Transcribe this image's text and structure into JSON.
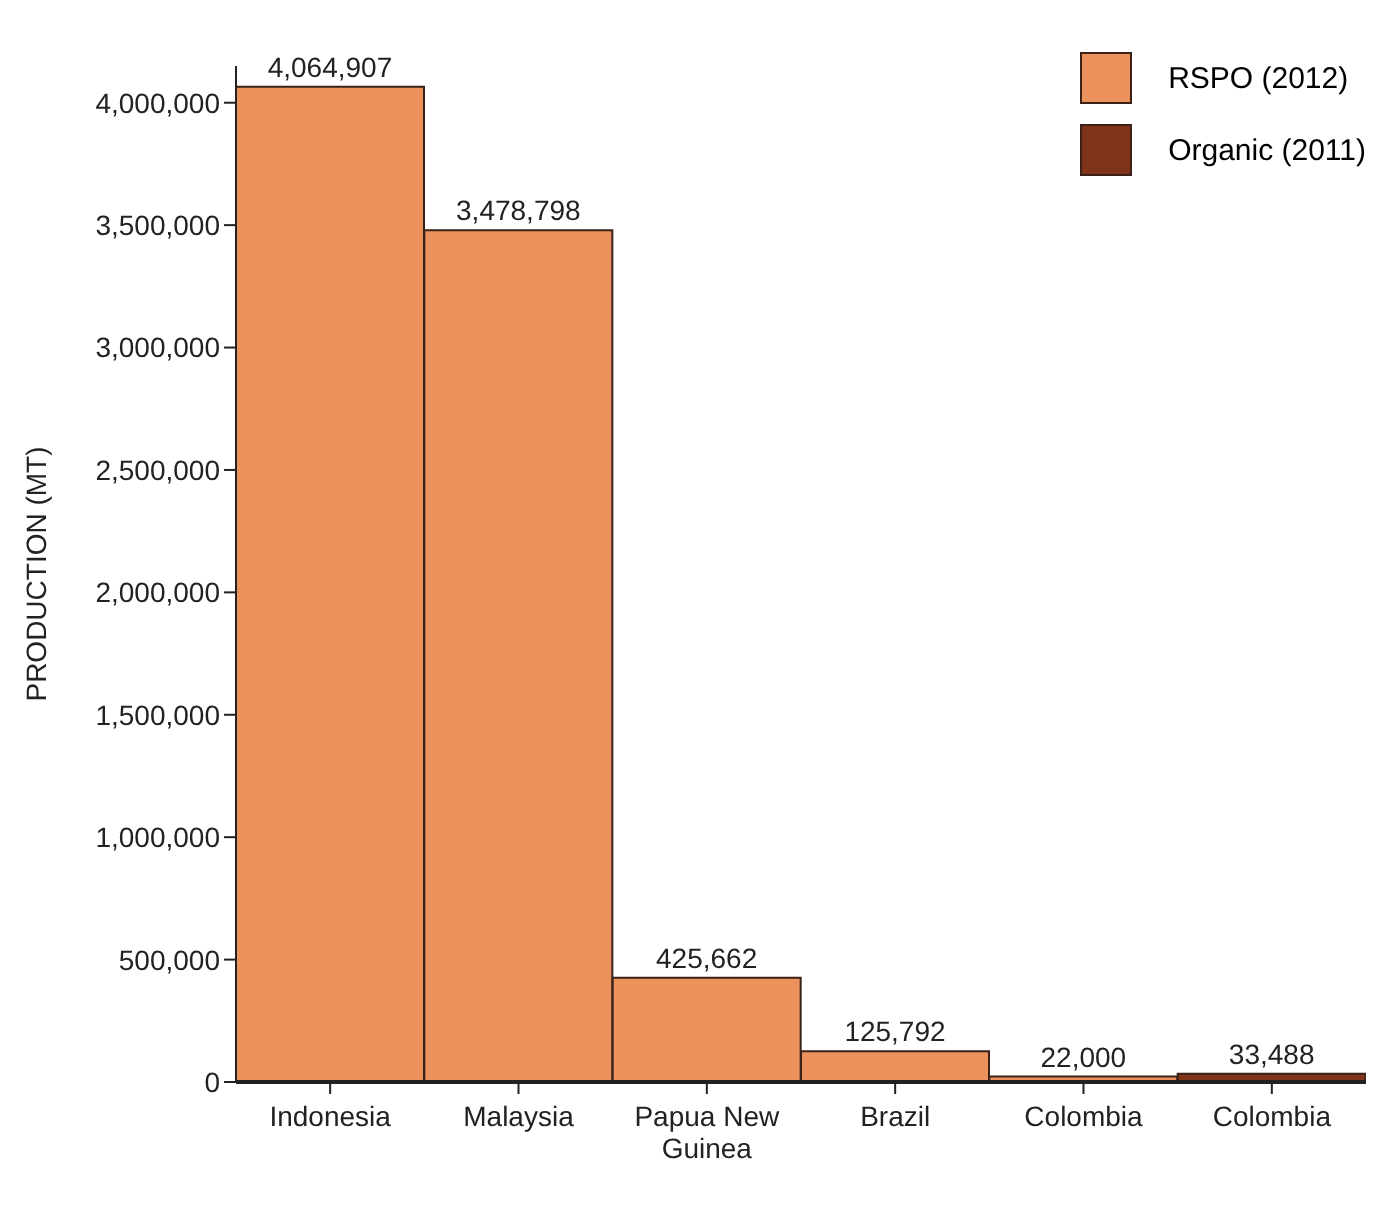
{
  "chart_data": {
    "type": "bar",
    "ylabel": "PRODUCTION (MT)",
    "categories": [
      "Indonesia",
      "Malaysia",
      "Papua New Guinea",
      "Brazil",
      "Colombia",
      "Colombia"
    ],
    "series": [
      {
        "name": "RSPO (2012)",
        "color": "#ec935d",
        "values": [
          4064907,
          3478798,
          425662,
          125792,
          22000,
          null
        ],
        "value_labels": [
          "4,064,907",
          "3,478,798",
          "425,662",
          "125,792",
          "22,000",
          null
        ]
      },
      {
        "name": "Organic (2011)",
        "color": "#80341a",
        "values": [
          null,
          null,
          null,
          null,
          null,
          33488
        ],
        "value_labels": [
          null,
          null,
          null,
          null,
          null,
          "33,488"
        ]
      }
    ],
    "ylim": [
      0,
      4150000
    ],
    "yticks": [
      0,
      {
        "value": 500000,
        "label": "500,000"
      },
      {
        "value": 1000000,
        "label": "1,000,000"
      },
      {
        "value": 1500000,
        "label": "1,500,000"
      },
      {
        "value": 2000000,
        "label": "2,000,000"
      },
      {
        "value": 2500000,
        "label": "2,500,000"
      },
      {
        "value": 3000000,
        "label": "3,000,000"
      },
      {
        "value": 3500000,
        "label": "3,500,000"
      },
      {
        "value": 4000000,
        "label": "4,000,000"
      }
    ],
    "grid": false,
    "legend": "top right"
  }
}
